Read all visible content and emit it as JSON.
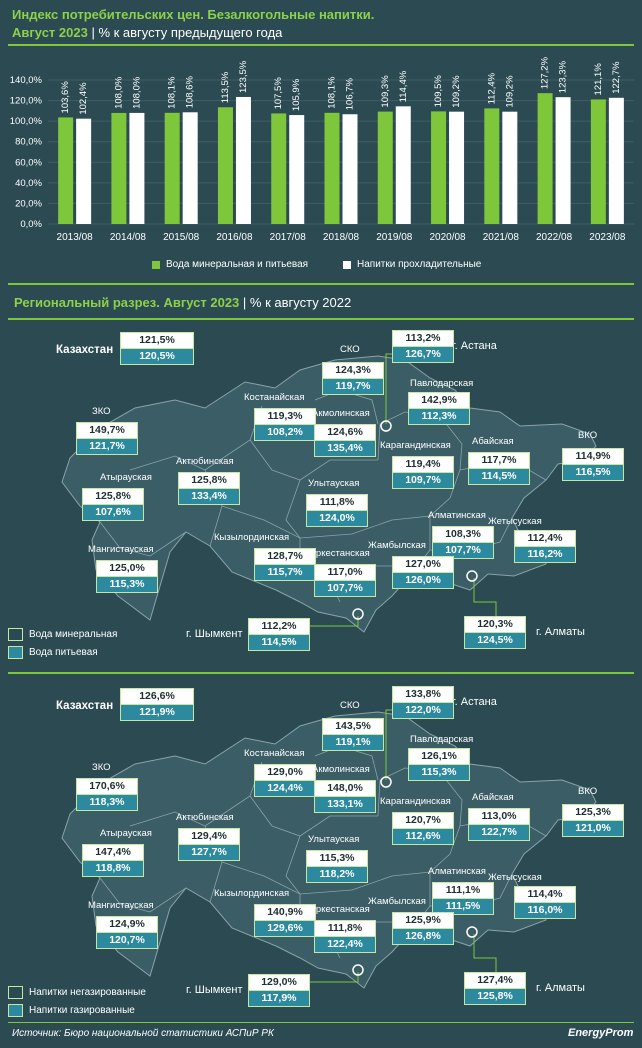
{
  "header": {
    "title": "Индекс потребительских цен. Безалкогольные напитки.",
    "subtitle_strong": "Август 2023",
    "subtitle_rest": " | % к августу предыдущего года"
  },
  "chart_data": {
    "type": "bar",
    "categories": [
      "2013/08",
      "2014/08",
      "2015/08",
      "2016/08",
      "2017/08",
      "2018/08",
      "2019/08",
      "2020/08",
      "2021/08",
      "2022/08",
      "2023/08"
    ],
    "series": [
      {
        "name": "Вода минеральная и питьевая",
        "color": "#7ec63a",
        "values": [
          103.6,
          108.0,
          108.1,
          113.5,
          107.5,
          108.1,
          109.3,
          109.5,
          112.4,
          127.2,
          121.1
        ],
        "labels": [
          "103,6%",
          "108,0%",
          "108,1%",
          "113,5%",
          "107,5%",
          "108,1%",
          "109,3%",
          "109,5%",
          "112,4%",
          "127,2%",
          "121,1%"
        ]
      },
      {
        "name": "Напитки прохладительные",
        "color": "#ffffff",
        "values": [
          102.4,
          108.0,
          108.6,
          123.5,
          105.9,
          106.7,
          114.4,
          109.2,
          109.2,
          123.3,
          122.7
        ],
        "labels": [
          "102,4%",
          "108,0%",
          "108,6%",
          "123,5%",
          "105,9%",
          "106,7%",
          "114,4%",
          "109,2%",
          "109,2%",
          "123,3%",
          "122,7%"
        ]
      }
    ],
    "y_ticks": [
      "0,0%",
      "20,0%",
      "40,0%",
      "60,0%",
      "80,0%",
      "100,0%",
      "120,0%",
      "140,0%"
    ],
    "ylim": [
      0,
      140
    ]
  },
  "sec1": {
    "strong": "Региональный разрез. Август 2023",
    "rest": " | % к августу 2022",
    "legend_a": "Вода минеральная",
    "legend_b": "Вода питьевая"
  },
  "sec2": {
    "legend_a": "Напитки негазированные",
    "legend_b": "Напитки газированные"
  },
  "regions": {
    "kz": "Казахстан",
    "sko": "СКО",
    "astana": "г. Астана",
    "pavl": "Павлодарская",
    "kost": "Костанайская",
    "akm": "Акмолинская",
    "zko": "ЗКО",
    "karag": "Карагандинская",
    "abai": "Абайская",
    "vko": "ВКО",
    "aktob": "Актюбинская",
    "ulyt": "Улытауская",
    "atyr": "Атырауская",
    "almat": "Алматинская",
    "zhetys": "Жетысуская",
    "mang": "Мангистауская",
    "kyzyl": "Кызылординская",
    "turk": "Туркестанская",
    "zham": "Жамбылская",
    "shym": "г. Шымкент",
    "almaty": "г. Алматы"
  },
  "map1": {
    "kz": [
      "121,5%",
      "120,5%"
    ],
    "sko": [
      "124,3%",
      "119,7%"
    ],
    "astana": [
      "113,2%",
      "126,7%"
    ],
    "pavl": [
      "142,9%",
      "112,3%"
    ],
    "kost": [
      "119,3%",
      "108,2%"
    ],
    "akm": [
      "124,6%",
      "135,4%"
    ],
    "zko": [
      "149,7%",
      "121,7%"
    ],
    "karag": [
      "119,4%",
      "109,7%"
    ],
    "abai": [
      "117,7%",
      "114,5%"
    ],
    "vko": [
      "114,9%",
      "116,5%"
    ],
    "aktob": [
      "125,8%",
      "133,4%"
    ],
    "ulyt": [
      "111,8%",
      "124,0%"
    ],
    "atyr": [
      "125,8%",
      "107,6%"
    ],
    "almat": [
      "108,3%",
      "107,7%"
    ],
    "zhetys": [
      "112,4%",
      "116,2%"
    ],
    "mang": [
      "125,0%",
      "115,3%"
    ],
    "kyzyl": [
      "128,7%",
      "115,7%"
    ],
    "turk": [
      "117,0%",
      "107,7%"
    ],
    "zham": [
      "127,0%",
      "126,0%"
    ],
    "shym": [
      "112,2%",
      "114,5%"
    ],
    "almaty": [
      "120,3%",
      "124,5%"
    ]
  },
  "map2": {
    "kz": [
      "126,6%",
      "121,9%"
    ],
    "sko": [
      "143,5%",
      "119,1%"
    ],
    "astana": [
      "133,8%",
      "122,0%"
    ],
    "pavl": [
      "126,1%",
      "115,3%"
    ],
    "kost": [
      "129,0%",
      "124,4%"
    ],
    "akm": [
      "148,0%",
      "133,1%"
    ],
    "zko": [
      "170,6%",
      "118,3%"
    ],
    "karag": [
      "120,7%",
      "112,6%"
    ],
    "abai": [
      "113,0%",
      "122,7%"
    ],
    "vko": [
      "125,3%",
      "121,0%"
    ],
    "aktob": [
      "129,4%",
      "127,7%"
    ],
    "ulyt": [
      "115,3%",
      "118,2%"
    ],
    "atyr": [
      "147,4%",
      "118,8%"
    ],
    "almat": [
      "111,1%",
      "111,5%"
    ],
    "zhetys": [
      "114,4%",
      "116,0%"
    ],
    "mang": [
      "124,9%",
      "120,7%"
    ],
    "kyzyl": [
      "140,9%",
      "129,6%"
    ],
    "turk": [
      "111,8%",
      "122,4%"
    ],
    "zham": [
      "125,9%",
      "126,8%"
    ],
    "shym": [
      "129,0%",
      "117,9%"
    ],
    "almaty": [
      "127,4%",
      "125,8%"
    ]
  },
  "footer": {
    "source": "Источник: Бюро национальной статистики АСПиР РК",
    "logo": "EnergyProm"
  }
}
